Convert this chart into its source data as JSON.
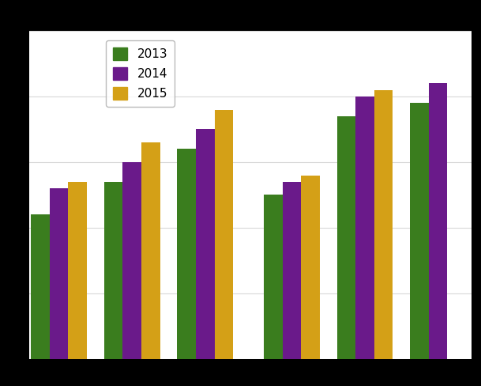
{
  "series": {
    "2013": [
      22,
      27,
      32,
      25,
      37,
      39
    ],
    "2014": [
      26,
      30,
      35,
      27,
      40,
      42
    ],
    "2015": [
      27,
      33,
      38,
      28,
      41,
      null
    ]
  },
  "colors": {
    "2013": "#3a7d1e",
    "2014": "#6a1a8a",
    "2015": "#d4a017"
  },
  "ylim": [
    0,
    50
  ],
  "background_color": "#ffffff",
  "figure_facecolor": "#000000",
  "bar_width": 0.28,
  "positions": [
    0,
    1.1,
    2.2,
    3.5,
    4.6,
    5.7
  ],
  "xlim": [
    -0.45,
    6.2
  ],
  "legend_loc": "upper left",
  "legend_fontsize": 11,
  "grid_color": "#d8d8d8",
  "grid_linewidth": 0.8
}
